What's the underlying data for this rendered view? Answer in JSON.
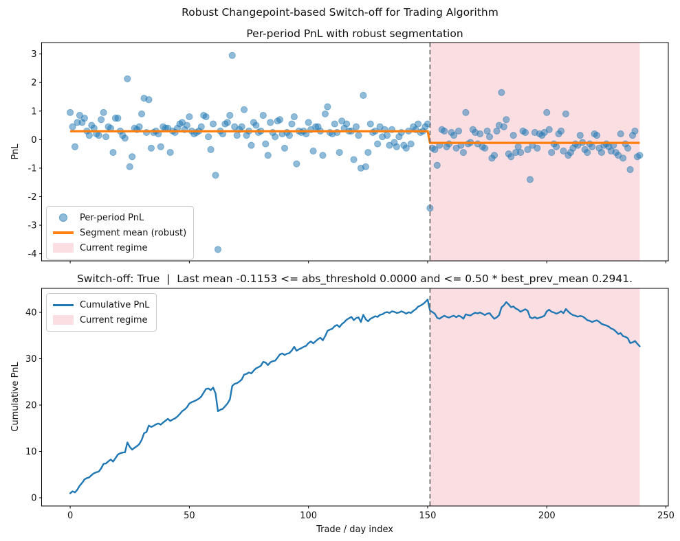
{
  "figure": {
    "suptitle": "Robust Changepoint-based Switch-off for Trading Algorithm"
  },
  "switch_off": {
    "active": true,
    "last_mean": -0.1153,
    "abs_threshold": 0.0,
    "best_prev_mean": 0.2941
  },
  "colors": {
    "scatter_fill": "rgba(31,119,180,0.5)",
    "scatter_edge": "rgba(31,119,180,0.45)",
    "segment_mean": "#ff7f0e",
    "cumulative": "#1f77b4",
    "regime_fill": "#fbdee1",
    "changepoint_line": "#666666",
    "axis": "#000000"
  },
  "chart_data": [
    {
      "type": "scatter",
      "title": "Per-period PnL with robust segmentation",
      "ylabel": "PnL",
      "x_is_index": true,
      "values": [
        0.95,
        0.45,
        -0.25,
        0.6,
        0.85,
        0.6,
        0.75,
        0.3,
        0.15,
        0.5,
        0.4,
        0.2,
        0.15,
        0.7,
        0.95,
        0.1,
        0.45,
        0.4,
        -0.45,
        0.75,
        0.75,
        0.3,
        0.15,
        0.05,
        2.13,
        -0.95,
        -0.6,
        0.4,
        0.35,
        0.45,
        0.9,
        1.45,
        0.25,
        1.4,
        -0.3,
        0.25,
        0.3,
        0.2,
        -0.25,
        0.45,
        0.4,
        0.4,
        -0.45,
        0.3,
        0.25,
        0.4,
        0.55,
        0.6,
        0.35,
        0.5,
        0.8,
        0.3,
        0.2,
        0.25,
        0.3,
        0.45,
        0.85,
        0.8,
        0.1,
        -0.35,
        0.55,
        -1.25,
        -3.85,
        0.3,
        0.2,
        0.55,
        0.6,
        0.85,
        2.95,
        0.45,
        0.15,
        0.35,
        0.45,
        1.05,
        0.15,
        0.3,
        -0.2,
        0.6,
        0.5,
        0.25,
        0.3,
        0.85,
        -0.15,
        -0.55,
        0.6,
        0.25,
        0.1,
        0.65,
        0.7,
        0.2,
        -0.3,
        0.25,
        0.15,
        0.55,
        0.8,
        -0.85,
        0.3,
        0.25,
        0.3,
        0.2,
        0.6,
        0.35,
        -0.4,
        0.45,
        0.45,
        0.3,
        -0.55,
        0.9,
        1.15,
        0.25,
        0.2,
        0.55,
        0.25,
        -0.45,
        0.65,
        0.4,
        0.55,
        0.3,
        0.3,
        -0.7,
        0.45,
        0.15,
        -1.0,
        1.55,
        -0.95,
        -0.45,
        0.55,
        0.25,
        0.3,
        -0.15,
        0.45,
        0.1,
        0.35,
        0.15,
        -0.2,
        0.35,
        -0.1,
        -0.25,
        0.1,
        0.25,
        -0.2,
        -0.3,
        0.3,
        -0.15,
        0.45,
        0.35,
        0.55,
        0.25,
        0.3,
        0.45,
        0.55,
        -2.4,
        -0.3,
        -0.35,
        -0.9,
        -0.2,
        0.35,
        0.3,
        -0.25,
        -0.15,
        0.25,
        0.15,
        -0.3,
        0.3,
        -0.2,
        -0.45,
        0.95,
        -0.15,
        -0.1,
        0.35,
        0.25,
        -0.15,
        0.2,
        -0.25,
        -0.3,
        0.3,
        0.1,
        -0.65,
        -0.55,
        0.3,
        0.5,
        1.65,
        0.45,
        0.7,
        -0.5,
        -0.6,
        0.15,
        -0.45,
        -0.25,
        -0.45,
        0.3,
        0.25,
        -0.35,
        -1.4,
        -0.2,
        0.25,
        -0.3,
        0.2,
        0.15,
        0.25,
        0.95,
        0.35,
        -0.45,
        -0.15,
        -0.25,
        0.2,
        0.3,
        -0.4,
        0.9,
        -0.55,
        -0.45,
        -0.3,
        -0.15,
        -0.2,
        0.15,
        -0.1,
        -0.35,
        -0.45,
        -0.15,
        -0.25,
        0.2,
        0.15,
        -0.3,
        -0.45,
        -0.2,
        -0.15,
        -0.25,
        -0.4,
        -0.2,
        -0.45,
        -0.55,
        0.2,
        -0.65,
        -0.15,
        -0.3,
        -1.05,
        0.15,
        0.3,
        -0.6,
        -0.55
      ],
      "segment_means": [
        {
          "x_start": 0,
          "x_end": 150,
          "mean": 0.2941
        },
        {
          "x_start": 151,
          "x_end": 239,
          "mean": -0.1153
        }
      ],
      "changepoint_x": 151,
      "current_regime": {
        "x_start": 151,
        "x_end": 239
      },
      "xlim": [
        -12,
        251
      ],
      "ylim": [
        -4.25,
        3.4
      ],
      "x_ticks": [
        0,
        50,
        100,
        150,
        200,
        250
      ],
      "y_ticks": [
        3,
        2,
        1,
        0,
        -1,
        -2,
        -3,
        -4
      ],
      "legend": [
        {
          "label": "Per-period PnL",
          "marker": "dot"
        },
        {
          "label": "Segment mean (robust)",
          "marker": "line"
        },
        {
          "label": "Current regime",
          "marker": "patch"
        }
      ],
      "legend_position": "lower left"
    },
    {
      "type": "line",
      "title": "Switch-off: True  |  Last mean -0.1153 <= abs_threshold 0.0000 and <= 0.50 * best_prev_mean 0.2941.",
      "ylabel": "Cumulative PnL",
      "xlabel": "Trade / day index",
      "values_source": "cumulative_sum_of_per_period_pnl",
      "changepoint_x": 151,
      "current_regime": {
        "x_start": 151,
        "x_end": 239
      },
      "xlim": [
        -12,
        251
      ],
      "ylim": [
        -1.78,
        45.19
      ],
      "x_ticks": [
        0,
        50,
        100,
        150,
        200,
        250
      ],
      "y_ticks": [
        0,
        10,
        20,
        30,
        40
      ],
      "legend": [
        {
          "label": "Cumulative PnL",
          "marker": "line"
        },
        {
          "label": "Current regime",
          "marker": "patch"
        }
      ],
      "legend_position": "upper left"
    }
  ]
}
